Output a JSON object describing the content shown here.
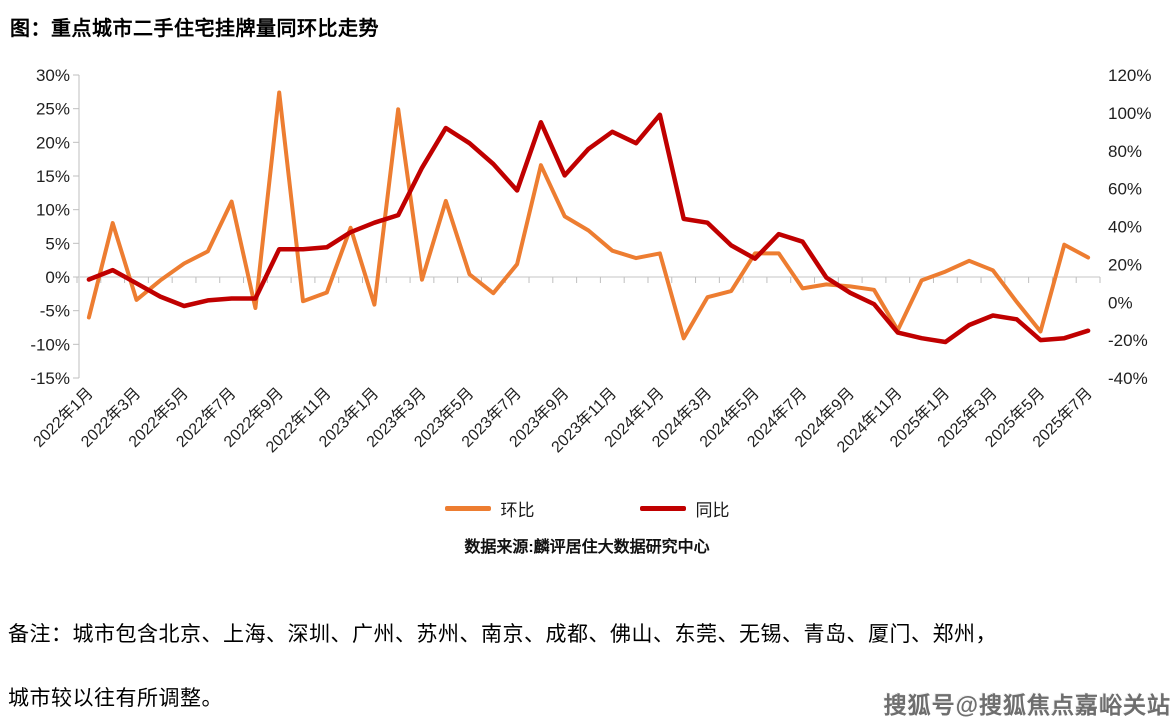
{
  "title": "图：重点城市二手住宅挂牌量同环比走势",
  "source": "数据来源:麟评居住大数据研究中心",
  "note_line1": "备注：城市包含北京、上海、深圳、广州、苏州、南京、成都、佛山、东莞、无锡、青岛、厦门、郑州，",
  "note_line2": "城市较以往有所调整。",
  "watermark": "搜狐号@搜狐焦点嘉峪关站",
  "colors": {
    "mom_line": "#ED7D31",
    "yoy_line": "#C00000",
    "zero_gridline": "#D9D9D9",
    "axis_line": "#BFBFBF",
    "axis_text": "#1f1f1f"
  },
  "chart_data": {
    "type": "line",
    "x": [
      "2022年1月",
      "2022年2月",
      "2022年3月",
      "2022年4月",
      "2022年5月",
      "2022年6月",
      "2022年7月",
      "2022年8月",
      "2022年9月",
      "2022年10月",
      "2022年11月",
      "2022年12月",
      "2023年1月",
      "2023年2月",
      "2023年3月",
      "2023年4月",
      "2023年5月",
      "2023年6月",
      "2023年7月",
      "2023年8月",
      "2023年9月",
      "2023年10月",
      "2023年11月",
      "2023年12月",
      "2024年1月",
      "2024年2月",
      "2024年3月",
      "2024年4月",
      "2024年5月",
      "2024年6月",
      "2024年7月",
      "2024年8月",
      "2024年9月",
      "2024年10月",
      "2024年11月",
      "2024年12月",
      "2025年1月",
      "2025年2月",
      "2025年3月",
      "2025年4月",
      "2025年5月",
      "2025年6月",
      "2025年7月"
    ],
    "x_label_every": 2,
    "x_labels_shown": [
      "2022年1月",
      "2022年3月",
      "2022年5月",
      "2022年7月",
      "2022年9月",
      "2022年11月",
      "2023年1月",
      "2023年3月",
      "2023年5月",
      "2023年7月",
      "2023年9月",
      "2023年11月",
      "2024年1月",
      "2024年3月",
      "2024年5月",
      "2024年7月",
      "2024年9月",
      "2024年11月",
      "2025年1月",
      "2025年3月",
      "2025年5月",
      "2025年7月"
    ],
    "series": [
      {
        "name": "环比",
        "axis": "left",
        "color": "#ED7D31",
        "values": [
          -6.0,
          8.0,
          -3.4,
          -0.5,
          2.0,
          3.8,
          11.2,
          -4.6,
          27.4,
          -3.6,
          -2.3,
          7.3,
          -4.1,
          24.9,
          -0.4,
          11.3,
          0.4,
          -2.4,
          1.9,
          16.6,
          9.0,
          6.9,
          3.9,
          2.8,
          3.5,
          -9.1,
          -3.0,
          -2.1,
          3.5,
          3.5,
          -1.7,
          -1.1,
          -1.4,
          -1.9,
          -7.9,
          -0.5,
          0.8,
          2.4,
          1.0,
          -3.7,
          -8.1,
          4.8,
          2.9
        ]
      },
      {
        "name": "同比",
        "axis": "right",
        "color": "#C00000",
        "values": [
          12,
          17,
          10,
          3,
          -2,
          1,
          2,
          2,
          28,
          28,
          29,
          37,
          42,
          46,
          71,
          92,
          84,
          73,
          59,
          95,
          67,
          81,
          90,
          84,
          99,
          44,
          42,
          30,
          23,
          36,
          32,
          13,
          5,
          -1,
          -16,
          -19,
          -21,
          -12,
          -7,
          -9,
          -20,
          -19,
          -15
        ]
      }
    ],
    "left_axis": {
      "min": -15,
      "max": 30,
      "step": 5,
      "ticks": [
        "30%",
        "25%",
        "20%",
        "15%",
        "10%",
        "5%",
        "0%",
        "-5%",
        "-10%",
        "-15%"
      ]
    },
    "right_axis": {
      "min": -40,
      "max": 120,
      "step": 20,
      "ticks": [
        "120%",
        "100%",
        "80%",
        "60%",
        "40%",
        "20%",
        "0%",
        "-20%",
        "-40%"
      ]
    },
    "grid": "zero-line-only",
    "legend_position": "bottom-center"
  }
}
